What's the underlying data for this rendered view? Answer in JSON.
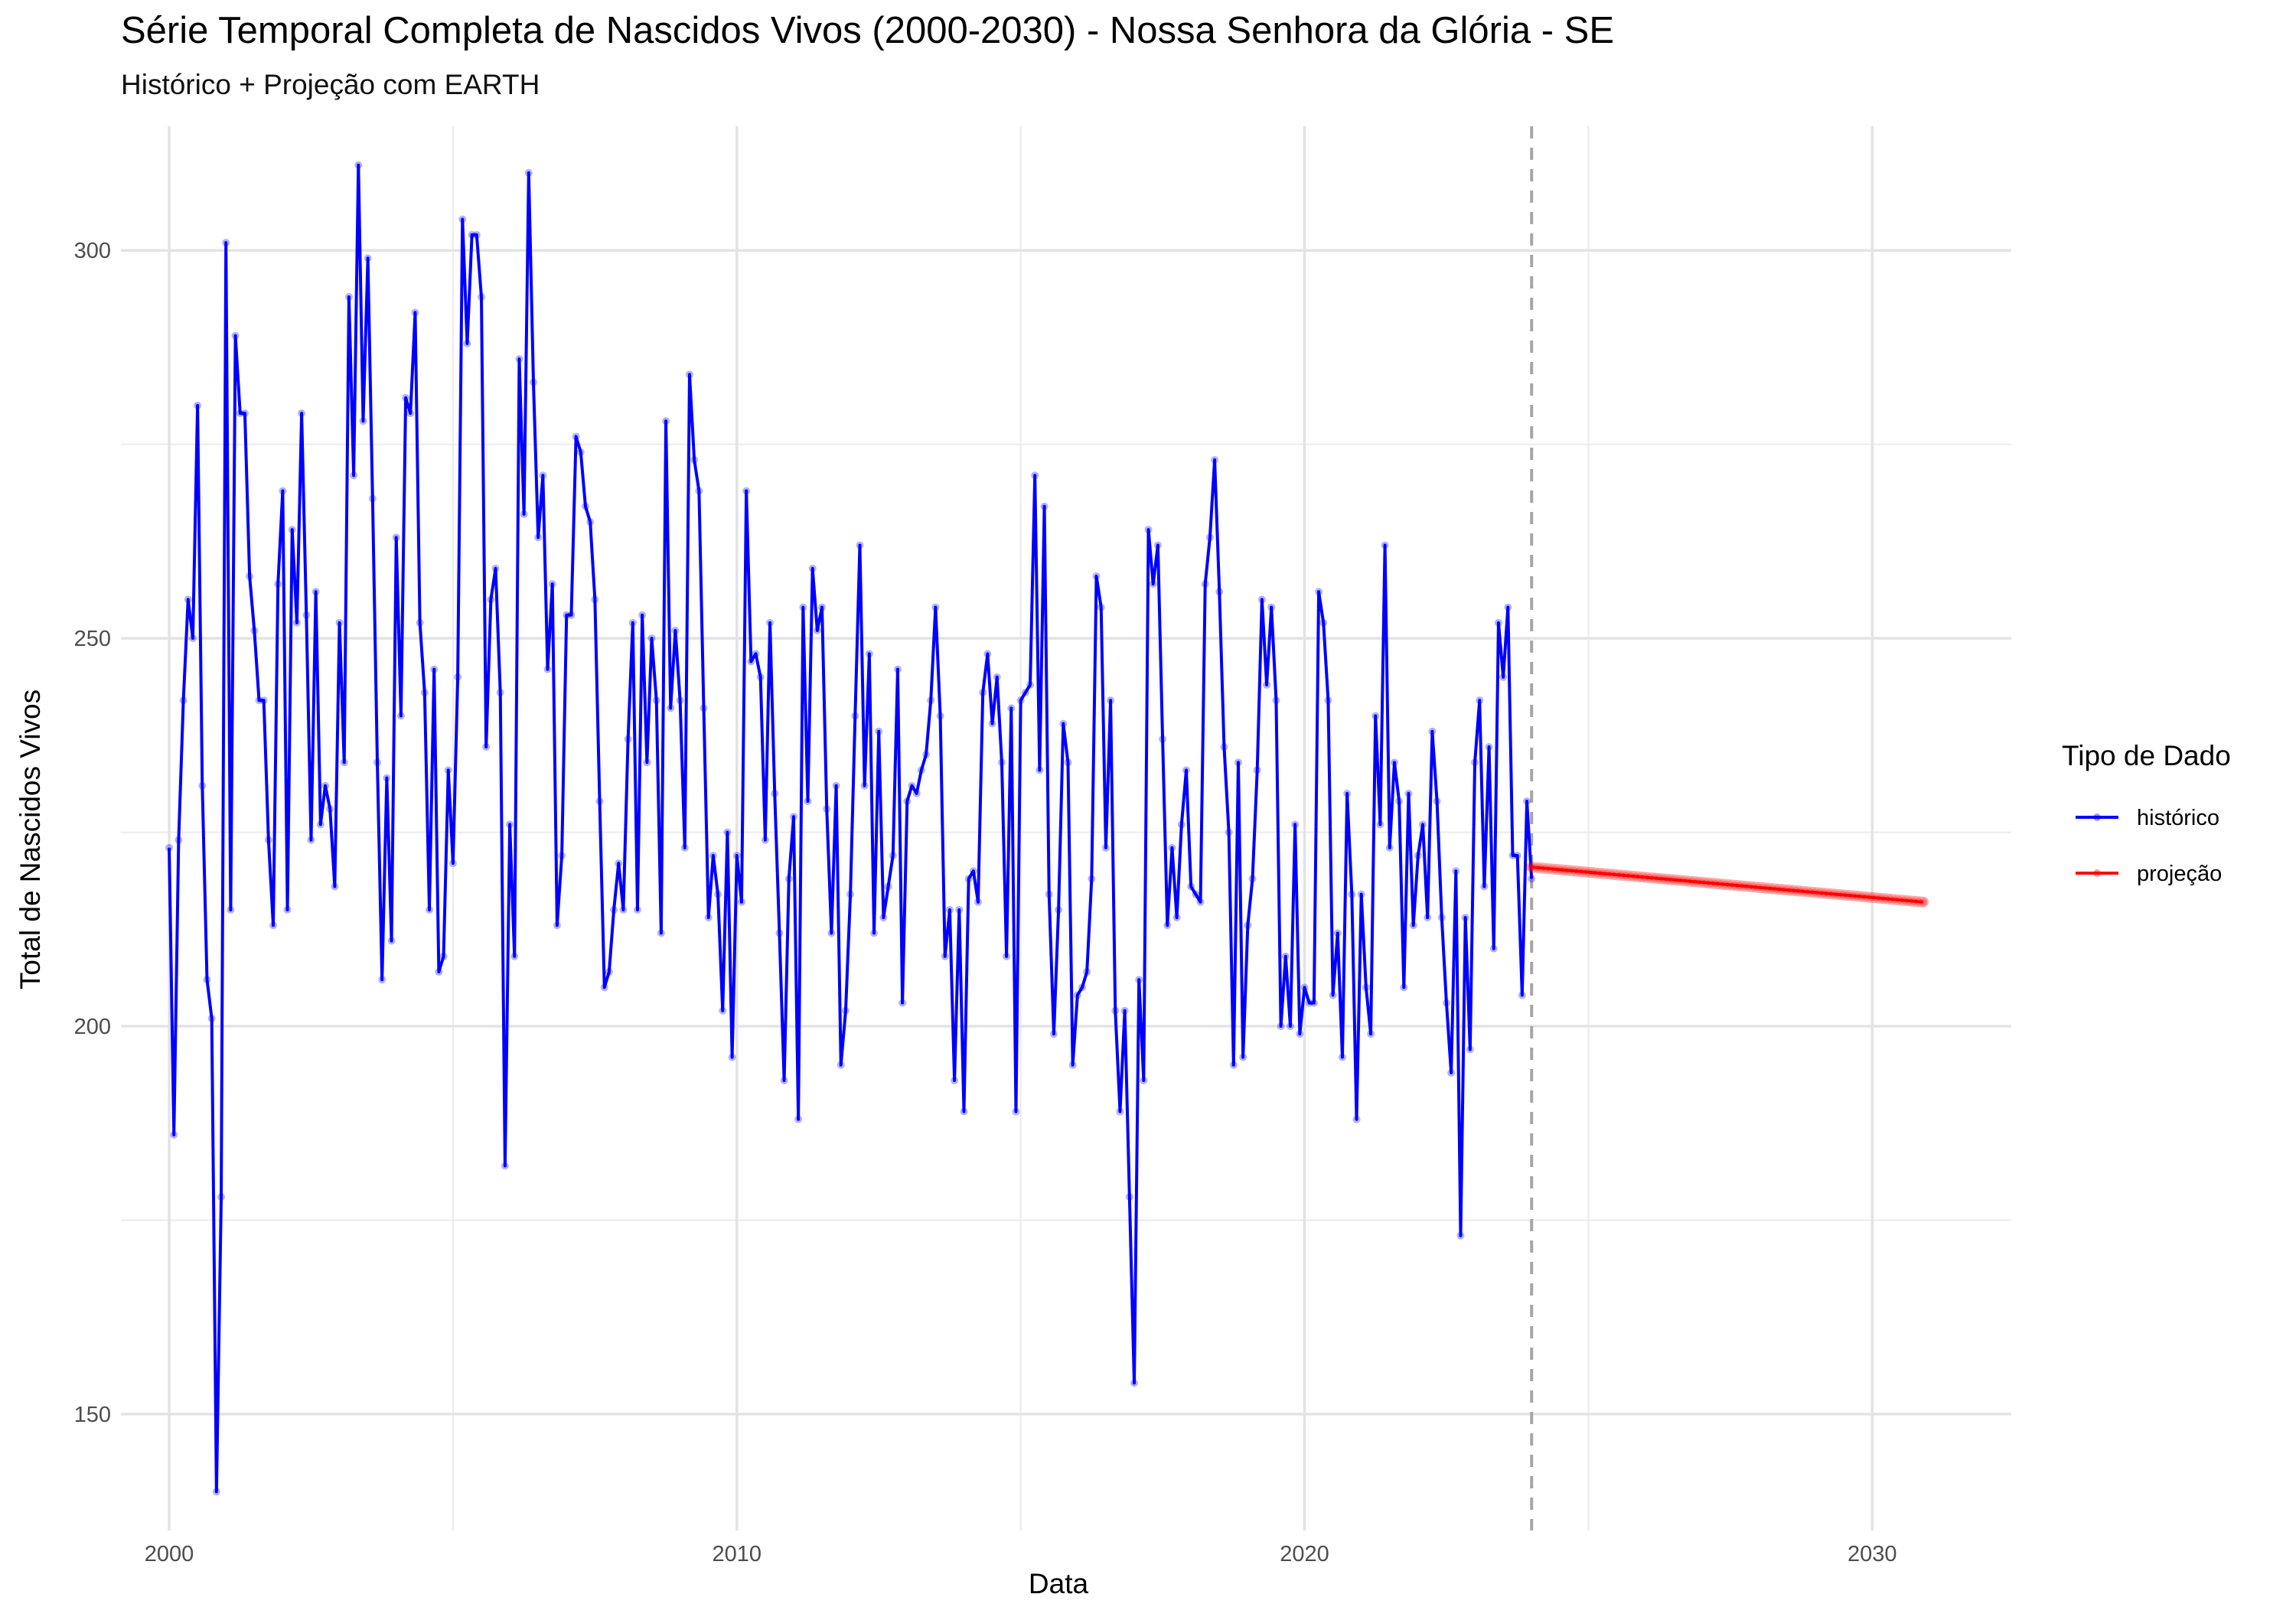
{
  "chart_data": {
    "type": "line",
    "title": "Série Temporal Completa de Nascidos Vivos (2000-2030) -  Nossa Senhora da Glória - SE",
    "subtitle": "Histórico + Projeção com EARTH",
    "xlabel": "Data",
    "ylabel": "Total de Nascidos Vivos",
    "xlim": [
      1999.15,
      2032.45
    ],
    "ylim": [
      135,
      316
    ],
    "x_ticks": [
      2000,
      2010,
      2020,
      2030
    ],
    "y_ticks": [
      150,
      200,
      250,
      300
    ],
    "grid": true,
    "legend_title": "Tipo de Dado",
    "legend_position": "right",
    "vline_x": 2024.0,
    "series": [
      {
        "name": "histórico",
        "color": "#0000ff",
        "start": 2000.0,
        "step_months": 1,
        "values": [
          223,
          186,
          224,
          242,
          255,
          250,
          280,
          231,
          206,
          201,
          140,
          178,
          301,
          215,
          289,
          279,
          279,
          258,
          251,
          242,
          242,
          224,
          213,
          257,
          269,
          215,
          264,
          252,
          279,
          253,
          224,
          256,
          226,
          231,
          228,
          218,
          252,
          234,
          294,
          271,
          311,
          278,
          299,
          268,
          234,
          206,
          232,
          211,
          263,
          240,
          281,
          279,
          292,
          252,
          243,
          215,
          246,
          207,
          209,
          233,
          221,
          245,
          304,
          288,
          302,
          302,
          294,
          236,
          255,
          259,
          243,
          182,
          226,
          209,
          286,
          266,
          310,
          283,
          263,
          271,
          246,
          257,
          213,
          222,
          253,
          253,
          276,
          274,
          267,
          265,
          255,
          229,
          205,
          207,
          215,
          221,
          215,
          237,
          252,
          215,
          253,
          234,
          250,
          242,
          212,
          278,
          241,
          251,
          242,
          223,
          284,
          273,
          269,
          241,
          214,
          222,
          217,
          202,
          225,
          196,
          222,
          216,
          269,
          247,
          248,
          245,
          224,
          252,
          230,
          212,
          193,
          219,
          227,
          188,
          254,
          229,
          259,
          251,
          254,
          228,
          212,
          231,
          195,
          202,
          217,
          240,
          262,
          231,
          248,
          212,
          238,
          214,
          218,
          222,
          246,
          203,
          229,
          231,
          230,
          233,
          235,
          242,
          254,
          240,
          209,
          215,
          193,
          215,
          189,
          219,
          220,
          216,
          243,
          248,
          239,
          245,
          234,
          209,
          241,
          189,
          242,
          243,
          244,
          271,
          233,
          267,
          217,
          199,
          215,
          239,
          234,
          195,
          204,
          205,
          207,
          219,
          258,
          254,
          223,
          242,
          202,
          189,
          202,
          178,
          154,
          206,
          193,
          264,
          257,
          262,
          237,
          213,
          223,
          214,
          226,
          233,
          218,
          217,
          216,
          257,
          263,
          273,
          256,
          236,
          225,
          195,
          234,
          196,
          213,
          219,
          233,
          255,
          244,
          254,
          242,
          200,
          209,
          200,
          226,
          199,
          205,
          203,
          203,
          256,
          252,
          242,
          204,
          212,
          196,
          230,
          217,
          188,
          217,
          205,
          199,
          240,
          226,
          262,
          223,
          234,
          229,
          205,
          230,
          213,
          222,
          226,
          214,
          238,
          229,
          214,
          203,
          194,
          220,
          173,
          214,
          197,
          234,
          242,
          218,
          236,
          210,
          252,
          245,
          254,
          222,
          222,
          204,
          229,
          219
        ]
      },
      {
        "name": "projeção",
        "color": "#ff0000",
        "x": [
          2024.0,
          2030.9
        ],
        "values": [
          220.5,
          216.0
        ]
      }
    ]
  }
}
